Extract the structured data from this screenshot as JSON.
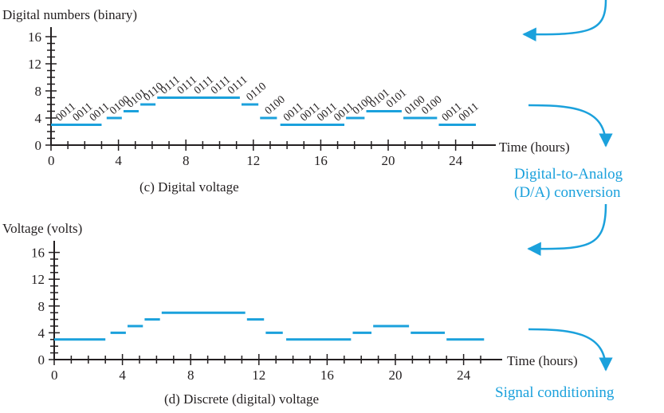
{
  "colors": {
    "accent": "#1ba1dc",
    "ink": "#231f20"
  },
  "figure": {
    "top_arrow_label": "",
    "d2a_label_line1": "Digital-to-Analog",
    "d2a_label_line2": "(D/A) conversion",
    "signal_conditioning_label": "Signal conditioning",
    "corner_fragment": "..."
  },
  "chart_data": [
    {
      "type": "step",
      "ylabel": "Digital numbers (binary)",
      "xlabel": "Time (hours)",
      "caption": "(c) Digital voltage",
      "xlim": [
        0,
        25.5
      ],
      "ylim": [
        0,
        16
      ],
      "x_ticks": [
        0,
        4,
        8,
        12,
        16,
        20,
        24
      ],
      "y_ticks": [
        0,
        4,
        8,
        12,
        16
      ],
      "x_minor_step": 1,
      "y_minor_step": 1,
      "segments": [
        {
          "x0": 0,
          "x1": 3,
          "y": 3
        },
        {
          "x0": 3.3,
          "x1": 4.2,
          "y": 4
        },
        {
          "x0": 4.3,
          "x1": 5.2,
          "y": 5
        },
        {
          "x0": 5.3,
          "x1": 6.2,
          "y": 6
        },
        {
          "x0": 6.3,
          "x1": 11.2,
          "y": 7
        },
        {
          "x0": 11.3,
          "x1": 12.3,
          "y": 6
        },
        {
          "x0": 12.4,
          "x1": 13.4,
          "y": 4
        },
        {
          "x0": 13.6,
          "x1": 17.4,
          "y": 3
        },
        {
          "x0": 17.5,
          "x1": 18.6,
          "y": 4
        },
        {
          "x0": 18.7,
          "x1": 20.8,
          "y": 5
        },
        {
          "x0": 20.9,
          "x1": 22.9,
          "y": 4
        },
        {
          "x0": 23.0,
          "x1": 25.2,
          "y": 3
        }
      ],
      "binary_labels": [
        {
          "text": "0011",
          "x": 0.5,
          "y": 3
        },
        {
          "text": "0011",
          "x": 1.5,
          "y": 3
        },
        {
          "text": "0011",
          "x": 2.5,
          "y": 3
        },
        {
          "text": "0100",
          "x": 3.7,
          "y": 4
        },
        {
          "text": "0101",
          "x": 4.7,
          "y": 5
        },
        {
          "text": "0110",
          "x": 5.7,
          "y": 6
        },
        {
          "text": "0111",
          "x": 6.7,
          "y": 7
        },
        {
          "text": "0111",
          "x": 7.7,
          "y": 7
        },
        {
          "text": "0111",
          "x": 8.7,
          "y": 7
        },
        {
          "text": "0111",
          "x": 9.7,
          "y": 7
        },
        {
          "text": "0111",
          "x": 10.7,
          "y": 7
        },
        {
          "text": "0110",
          "x": 11.8,
          "y": 6
        },
        {
          "text": "0100",
          "x": 12.9,
          "y": 4
        },
        {
          "text": "0011",
          "x": 14.0,
          "y": 3
        },
        {
          "text": "0011",
          "x": 15.0,
          "y": 3
        },
        {
          "text": "0011",
          "x": 16.0,
          "y": 3
        },
        {
          "text": "0011",
          "x": 17.0,
          "y": 3
        },
        {
          "text": "0100",
          "x": 18.1,
          "y": 4
        },
        {
          "text": "0101",
          "x": 19.1,
          "y": 5
        },
        {
          "text": "0101",
          "x": 20.1,
          "y": 5
        },
        {
          "text": "0100",
          "x": 21.2,
          "y": 4
        },
        {
          "text": "0100",
          "x": 22.2,
          "y": 4
        },
        {
          "text": "0011",
          "x": 23.4,
          "y": 3
        },
        {
          "text": "0011",
          "x": 24.4,
          "y": 3
        }
      ]
    },
    {
      "type": "step",
      "ylabel": "Voltage (volts)",
      "xlabel": "Time (hours)",
      "caption": "(d) Discrete (digital) voltage",
      "xlim": [
        0,
        25.5
      ],
      "ylim": [
        0,
        16
      ],
      "x_ticks": [
        0,
        4,
        8,
        12,
        16,
        20,
        24
      ],
      "y_ticks": [
        0,
        4,
        8,
        12,
        16
      ],
      "x_minor_step": 1,
      "y_minor_step": 1,
      "segments": [
        {
          "x0": 0,
          "x1": 3,
          "y": 3
        },
        {
          "x0": 3.3,
          "x1": 4.2,
          "y": 4
        },
        {
          "x0": 4.3,
          "x1": 5.2,
          "y": 5
        },
        {
          "x0": 5.3,
          "x1": 6.2,
          "y": 6
        },
        {
          "x0": 6.3,
          "x1": 11.2,
          "y": 7
        },
        {
          "x0": 11.3,
          "x1": 12.3,
          "y": 6
        },
        {
          "x0": 12.4,
          "x1": 13.4,
          "y": 4
        },
        {
          "x0": 13.6,
          "x1": 17.4,
          "y": 3
        },
        {
          "x0": 17.5,
          "x1": 18.6,
          "y": 4
        },
        {
          "x0": 18.7,
          "x1": 20.8,
          "y": 5
        },
        {
          "x0": 20.9,
          "x1": 22.9,
          "y": 4
        },
        {
          "x0": 23.0,
          "x1": 25.2,
          "y": 3
        }
      ]
    }
  ]
}
